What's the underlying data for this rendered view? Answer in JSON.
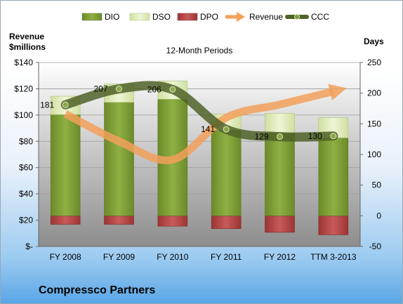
{
  "chart_data": {
    "type": "bar",
    "title": "12-Month Periods",
    "categories": [
      "FY 2008",
      "FY 2009",
      "FY 2010",
      "FY 2011",
      "FY 2012",
      "TTM 3-2013"
    ],
    "y_left_label_line1": "Revenue",
    "y_left_label_line2": "$millions",
    "y_right_label": "Days",
    "y_left_ticks": [
      "$140",
      "$120",
      "$100",
      "$80",
      "$60",
      "$40",
      "$20",
      "$-"
    ],
    "y_right_ticks": [
      "250",
      "200",
      "150",
      "100",
      "50",
      "0",
      "-50"
    ],
    "ylim_left": [
      0,
      140
    ],
    "ylim_right": [
      -50,
      250
    ],
    "series": [
      {
        "name": "DIO",
        "axis": "right",
        "values": [
          165,
          185,
          190,
          140,
          135,
          127
        ]
      },
      {
        "name": "DSO",
        "axis": "right",
        "values": [
          30,
          30,
          30,
          26,
          32,
          33
        ]
      },
      {
        "name": "DPO",
        "axis": "right",
        "values": [
          -14,
          -14,
          -17,
          -21,
          -27,
          -31
        ]
      },
      {
        "name": "Revenue",
        "axis": "left",
        "values": [
          101,
          80,
          66,
          98,
          108,
          118
        ]
      },
      {
        "name": "CCC",
        "axis": "right",
        "values": [
          181,
          207,
          206,
          141,
          129,
          130
        ]
      }
    ],
    "ccc_labels": [
      "181",
      "207",
      "206",
      "141",
      "129",
      "130"
    ],
    "legend": [
      "DIO",
      "DSO",
      "DPO",
      "Revenue",
      "CCC"
    ],
    "legend_position": "top",
    "colors": {
      "DIO": "#7a9a35",
      "DSO": "#dbe8b4",
      "DPO": "#b84b4b",
      "Revenue": "#f2a05a",
      "CCC": "#4f6228"
    }
  },
  "company_name": "Compressco Partners"
}
